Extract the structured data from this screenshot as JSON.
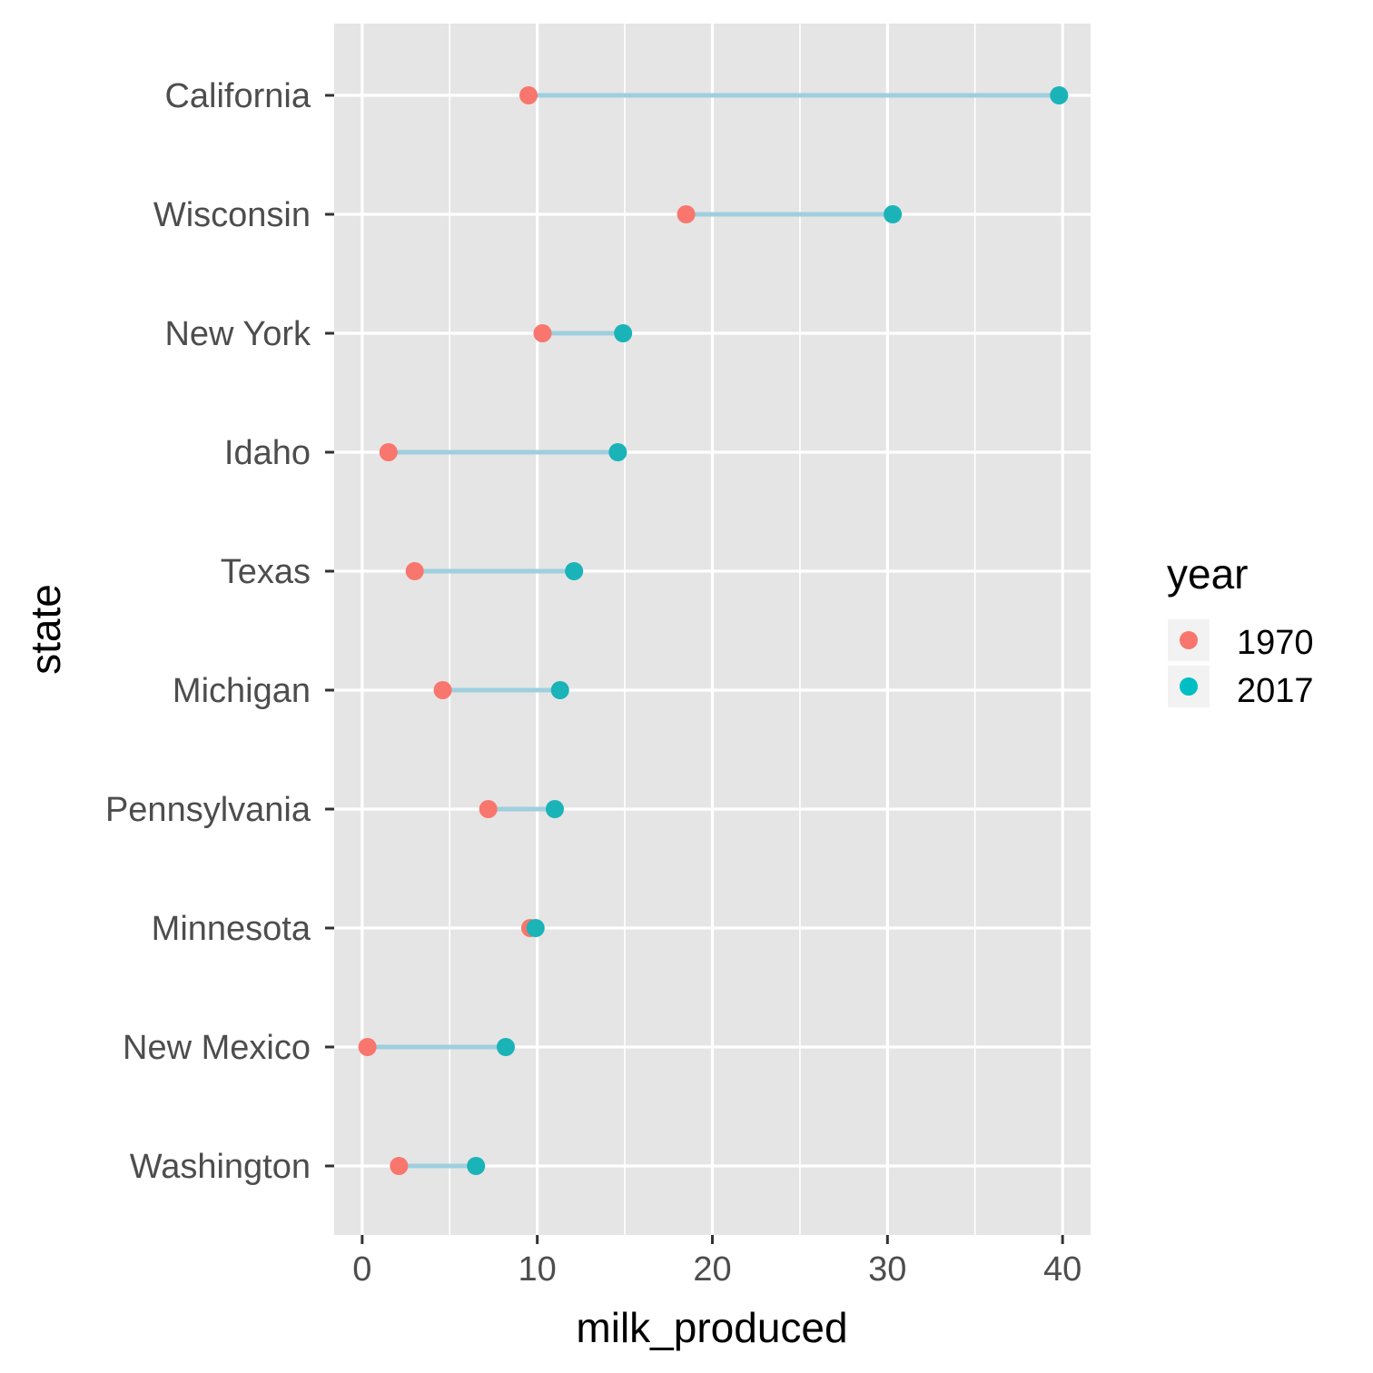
{
  "chart_data": {
    "type": "dumbbell",
    "xlabel": "milk_produced",
    "ylabel": "state",
    "xlim": [
      -1.6,
      41.6
    ],
    "x_ticks": [
      "0",
      "10",
      "20",
      "30",
      "40"
    ],
    "grid": true,
    "legend": {
      "title": "year",
      "placement": "right",
      "entries": [
        {
          "label": "1970",
          "color": "#f8766d"
        },
        {
          "label": "2017",
          "color": "#00bfc4"
        }
      ]
    },
    "colors": {
      "panel": "#e5e5e5",
      "grid": "#ffffff",
      "segment": "#9fcfdf",
      "c1970": "#f8766d",
      "c2017": "#1ab3b8"
    },
    "categories": [
      "California",
      "Wisconsin",
      "New York",
      "Idaho",
      "Texas",
      "Michigan",
      "Pennsylvania",
      "Minnesota",
      "New Mexico",
      "Washington"
    ],
    "series": [
      {
        "name": "1970",
        "values": [
          9.5,
          18.5,
          10.3,
          1.5,
          3.0,
          4.6,
          7.2,
          9.6,
          0.3,
          2.1
        ]
      },
      {
        "name": "2017",
        "values": [
          39.8,
          30.3,
          14.9,
          14.6,
          12.1,
          11.3,
          11.0,
          9.9,
          8.2,
          6.5
        ]
      }
    ]
  }
}
